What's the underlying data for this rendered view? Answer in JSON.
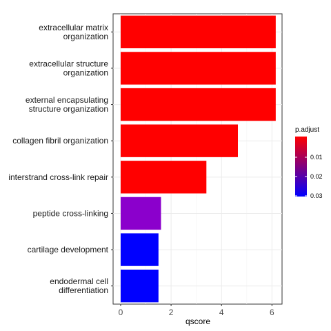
{
  "chart_data": {
    "type": "bar",
    "orientation": "horizontal",
    "title": "",
    "xlabel": "qscore",
    "ylabel": "",
    "xlim": [
      -0.3,
      6.4
    ],
    "x_ticks": [
      0,
      2,
      4,
      6
    ],
    "grid": true,
    "categories": [
      [
        "extracellular matrix",
        "organization"
      ],
      [
        "extracellular structure",
        "organization"
      ],
      [
        "external encapsulating",
        "structure organization"
      ],
      [
        "collagen fibril organization"
      ],
      [
        "interstrand cross-link repair"
      ],
      [
        "peptide cross-linking"
      ],
      [
        "cartilage development"
      ],
      [
        "endodermal cell",
        "differentiation"
      ]
    ],
    "values": [
      6.15,
      6.15,
      6.15,
      4.65,
      3.4,
      1.6,
      1.5,
      1.5
    ],
    "colors": [
      "#FF0000",
      "#FF0000",
      "#FF0000",
      "#FF0000",
      "#FF0000",
      "#8B00CC",
      "#0000FF",
      "#0000FF"
    ],
    "legend": {
      "title": "p.adjust",
      "position": "right",
      "ticks": [
        "0.01",
        "0.02",
        "0.03"
      ],
      "colors": [
        "#FF0000",
        "#0000FF"
      ]
    }
  }
}
